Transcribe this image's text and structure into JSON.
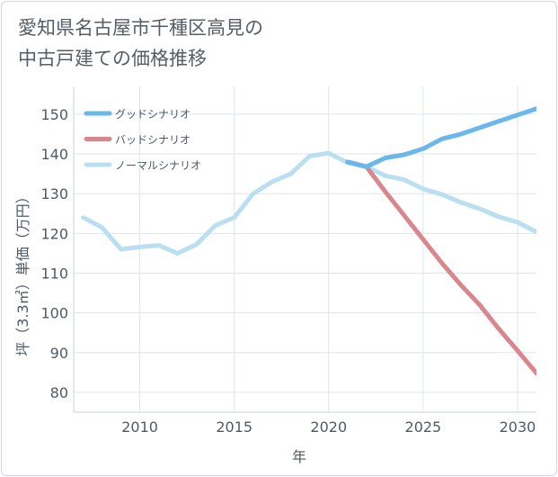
{
  "chart_data": {
    "type": "line",
    "title_lines": [
      "愛知県名古屋市千種区高見の",
      "中古戸建ての価格推移"
    ],
    "xlabel": "年",
    "ylabel": "坪（3.3㎡）単価（万円）",
    "xlim": [
      2006.5,
      2031
    ],
    "ylim": [
      75,
      157
    ],
    "x_ticks": [
      2010,
      2015,
      2020,
      2025,
      2030
    ],
    "y_ticks": [
      80,
      90,
      100,
      110,
      120,
      130,
      140,
      150
    ],
    "grid": true,
    "legend_position": "top-left",
    "series": [
      {
        "name": "グッドシナリオ",
        "color": "#6ab7ea",
        "x": [
          2021,
          2022,
          2023,
          2024,
          2025,
          2026,
          2027,
          2028,
          2029,
          2030,
          2031
        ],
        "y": [
          138,
          136.8,
          139,
          139.8,
          141.3,
          143.8,
          145,
          146.6,
          148.2,
          149.8,
          151.4
        ]
      },
      {
        "name": "バッドシナリオ",
        "color": "#d9878d",
        "x": [
          2021,
          2022,
          2023,
          2024,
          2025,
          2026,
          2027,
          2028,
          2029,
          2030,
          2031
        ],
        "y": [
          138,
          136.8,
          130.5,
          124.5,
          118.5,
          112.5,
          107,
          102,
          96,
          90.5,
          84.8
        ]
      },
      {
        "name": "ノーマルシナリオ",
        "color": "#b9dff0",
        "x": [
          2007,
          2008,
          2009,
          2010,
          2011,
          2012,
          2013,
          2014,
          2015,
          2016,
          2017,
          2018,
          2019,
          2020,
          2021,
          2022,
          2023,
          2024,
          2025,
          2026,
          2027,
          2028,
          2029,
          2030,
          2031
        ],
        "y": [
          124,
          121.5,
          116,
          116.6,
          117,
          115,
          117.2,
          122,
          124,
          130,
          133,
          135,
          139.5,
          140.2,
          137.8,
          136.8,
          134.5,
          133.5,
          131.2,
          129.8,
          127.8,
          126.2,
          124.2,
          122.8,
          120.4
        ]
      }
    ]
  }
}
